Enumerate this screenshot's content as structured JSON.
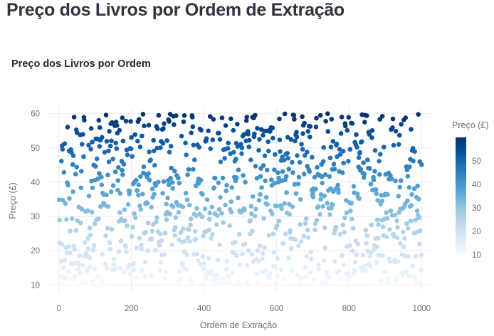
{
  "page": {
    "title": "Preço dos Livros por Ordem de Extração"
  },
  "chart_data": {
    "type": "scatter",
    "title": "Preço dos Livros por Ordem",
    "xlabel": "Ordem de Extração",
    "ylabel": "Preço (£)",
    "xlim": [
      -25,
      1025
    ],
    "ylim": [
      8,
      62
    ],
    "x_ticks": [
      0,
      200,
      400,
      600,
      800,
      1000
    ],
    "y_ticks": [
      10,
      20,
      30,
      40,
      50,
      60
    ],
    "grid": true,
    "marker_color_scale": "Blues",
    "colorbar": {
      "title": "Preço (£)",
      "range": [
        10,
        60
      ],
      "ticks": [
        10,
        20,
        30,
        40,
        50
      ]
    },
    "n_points": 1000,
    "x": "order of extraction 1..1000",
    "y_range": [
      10,
      60
    ]
  },
  "colors": {
    "grid": "#ebebf0",
    "tick_text": "#6d6e7a",
    "axis_title": "#6d6e7a",
    "scale_low": "#f7fbff",
    "scale_high": "#08306b"
  }
}
